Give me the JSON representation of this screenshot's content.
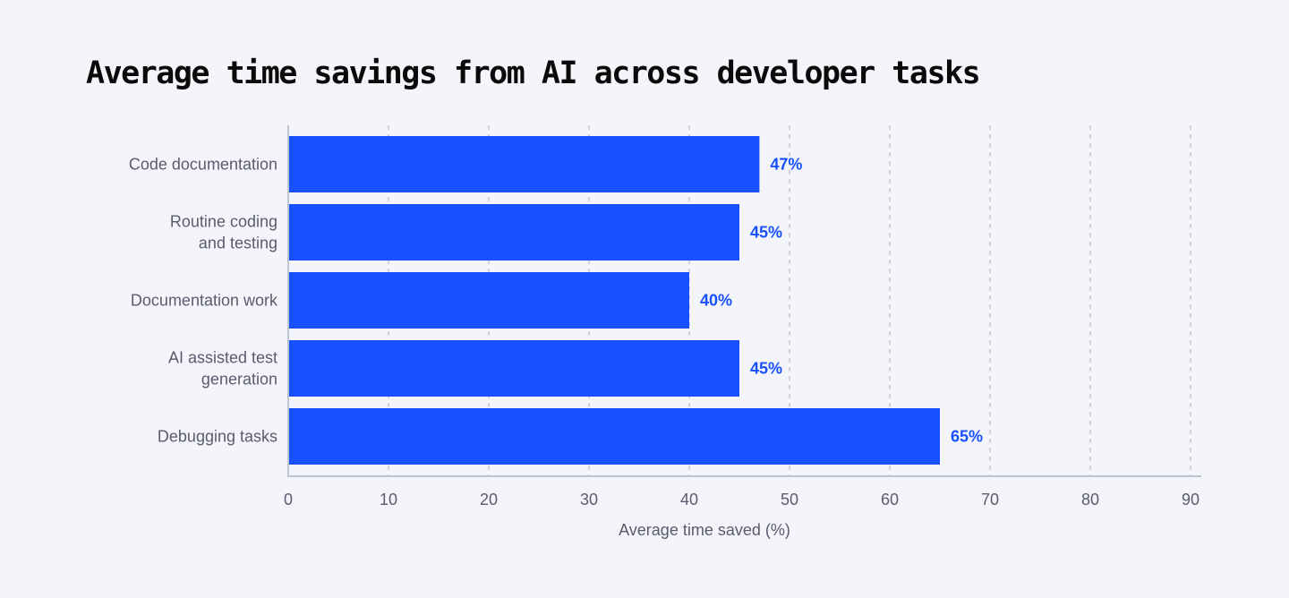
{
  "chart_data": {
    "type": "bar",
    "orientation": "horizontal",
    "title": "Average time savings from AI across developer tasks",
    "categories": [
      [
        "Code documentation"
      ],
      [
        "Routine coding",
        "and testing"
      ],
      [
        "Documentation work"
      ],
      [
        "AI assisted test",
        "generation"
      ],
      [
        "Debugging tasks"
      ]
    ],
    "values": [
      47,
      45,
      40,
      45,
      65
    ],
    "data_labels": [
      "47%",
      "45%",
      "40%",
      "45%",
      "65%"
    ],
    "xlabel": "Average time saved (%)",
    "ylabel": "",
    "xlim": [
      0,
      90
    ],
    "xticks": [
      0,
      10,
      20,
      30,
      40,
      50,
      60,
      70,
      80,
      90
    ],
    "grid": "vertical dashed",
    "colors": {
      "bar": "#1650ff",
      "label": "#1650ff",
      "background": "#f4f5fa",
      "axis": "#bfc4d0"
    }
  }
}
